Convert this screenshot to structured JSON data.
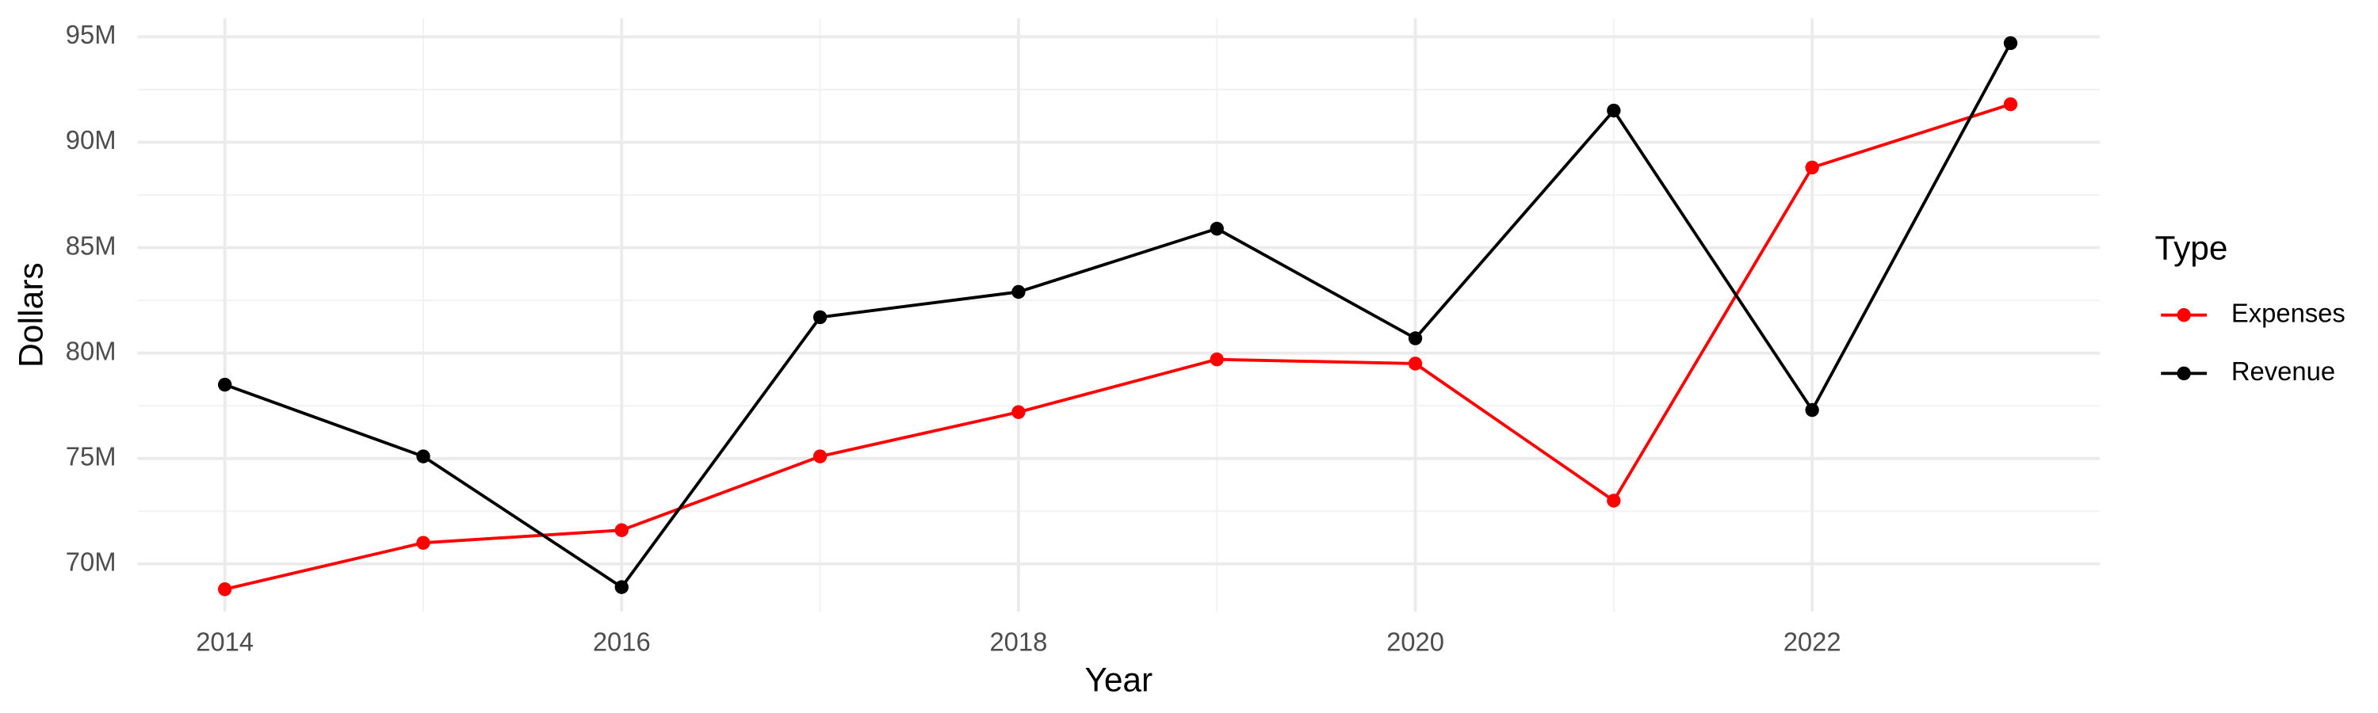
{
  "chart_data": {
    "type": "line",
    "x_label": "Year",
    "y_label": "Dollars",
    "x": [
      2014,
      2015,
      2016,
      2017,
      2018,
      2019,
      2020,
      2021,
      2022,
      2023
    ],
    "series": [
      {
        "name": "Expenses",
        "color": "#ff0000",
        "values": [
          68800000,
          71000000,
          71600000,
          75100000,
          77200000,
          79700000,
          79500000,
          73000000,
          88800000,
          91800000
        ]
      },
      {
        "name": "Revenue",
        "color": "#000000",
        "values": [
          78500000,
          75100000,
          68900000,
          81700000,
          82900000,
          85900000,
          80700000,
          91500000,
          77300000,
          94700000
        ]
      }
    ],
    "xlim": [
      2013.56,
      2023.45
    ],
    "xticks": [
      2014,
      2016,
      2018,
      2020,
      2022
    ],
    "ylim": [
      67740000,
      95870000
    ],
    "yticks": [
      {
        "value": 70000000,
        "label": "70M"
      },
      {
        "value": 75000000,
        "label": "75M"
      },
      {
        "value": 80000000,
        "label": "80M"
      },
      {
        "value": 85000000,
        "label": "85M"
      },
      {
        "value": 90000000,
        "label": "90M"
      },
      {
        "value": 95000000,
        "label": "95M"
      }
    ],
    "legend_title": "Type",
    "legend_position": "right",
    "grid": true
  }
}
